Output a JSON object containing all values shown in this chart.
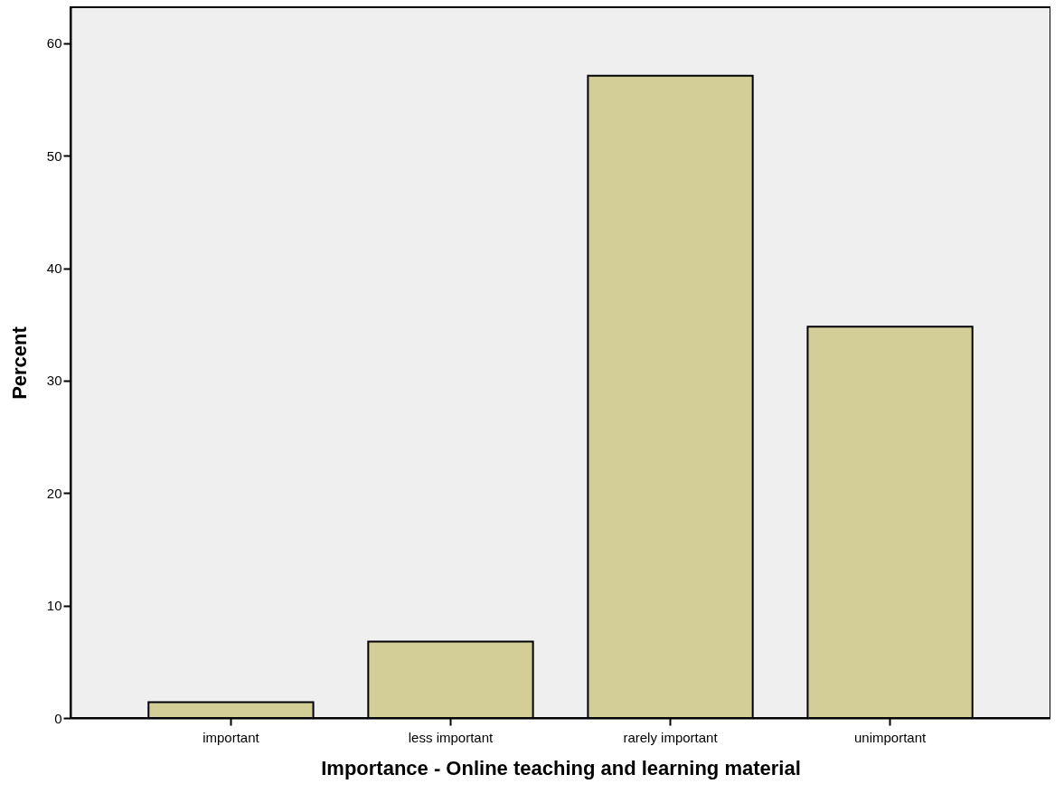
{
  "chart_data": {
    "type": "bar",
    "xlabel": "Importance - Online teaching and learning material",
    "ylabel": "Percent",
    "categories": [
      "important",
      "less important",
      "rarely important",
      "unimportant"
    ],
    "values": [
      1.4,
      6.8,
      57.1,
      34.8
    ],
    "color": "#d3ce97",
    "ylim": [
      0,
      63.2
    ],
    "yticks": [
      0,
      10,
      20,
      30,
      40,
      50,
      60
    ],
    "grid": false
  }
}
